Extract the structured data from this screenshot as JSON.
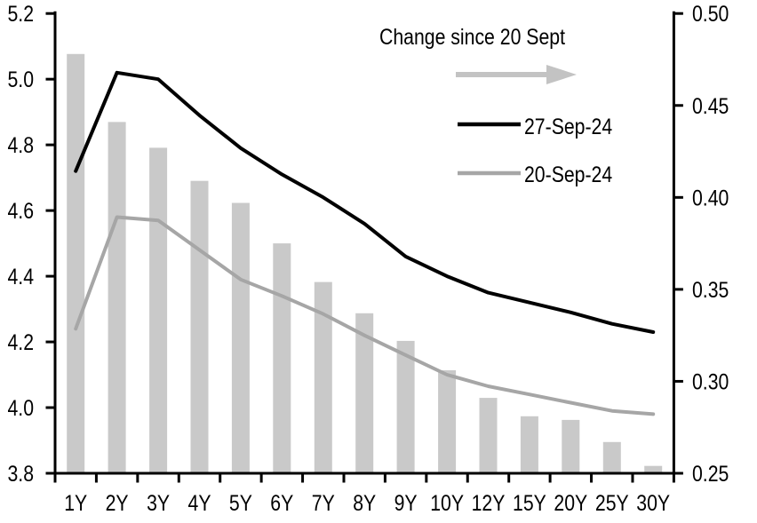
{
  "chart_data": {
    "type": "composite",
    "title": "Change since 20 Sept",
    "categories": [
      "1Y",
      "2Y",
      "3Y",
      "4Y",
      "5Y",
      "6Y",
      "7Y",
      "8Y",
      "9Y",
      "10Y",
      "12Y",
      "15Y",
      "20Y",
      "25Y",
      "30Y"
    ],
    "left_axis": {
      "min": 3.8,
      "max": 5.2,
      "tick_values": [
        5.2,
        5.0,
        4.8,
        4.6,
        4.4,
        4.2,
        4.0,
        3.8
      ],
      "tick_labels": [
        "5.2",
        "5.0",
        "4.8",
        "4.6",
        "4.4",
        "4.2",
        "4.0",
        "3.8"
      ]
    },
    "right_axis": {
      "min": 0.25,
      "max": 0.5,
      "tick_values": [
        0.5,
        0.45,
        0.4,
        0.35,
        0.3,
        0.25
      ],
      "tick_labels": [
        "0.50",
        "0.45",
        "0.40",
        "0.35",
        "0.30",
        "0.25"
      ]
    },
    "series": [
      {
        "name": "Change since 20 Sept",
        "type": "bar",
        "axis": "right",
        "color": "#c9c9c9",
        "values": [
          0.478,
          0.441,
          0.427,
          0.409,
          0.397,
          0.375,
          0.354,
          0.337,
          0.322,
          0.306,
          0.291,
          0.281,
          0.279,
          0.267,
          0.254
        ]
      },
      {
        "name": "27-Sep-24",
        "type": "line",
        "axis": "left",
        "color": "#000000",
        "values": [
          4.72,
          5.02,
          5.0,
          4.89,
          4.79,
          4.71,
          4.64,
          4.56,
          4.46,
          4.4,
          4.35,
          4.32,
          4.29,
          4.255,
          4.23
        ]
      },
      {
        "name": "20-Sep-24",
        "type": "line",
        "axis": "left",
        "color": "#a6a6a6",
        "values": [
          4.24,
          4.58,
          4.57,
          4.48,
          4.39,
          4.34,
          4.285,
          4.22,
          4.16,
          4.1,
          4.065,
          4.04,
          4.015,
          3.99,
          3.98
        ]
      }
    ],
    "legend_position": "top-right",
    "grid": false
  },
  "colors": {
    "background": "#ffffff",
    "axis": "#000000",
    "text": "#000000",
    "bar": "#c9c9c9",
    "line_27_sep": "#000000",
    "line_20_sep": "#a6a6a6",
    "arrow": "#c3c3c3"
  }
}
